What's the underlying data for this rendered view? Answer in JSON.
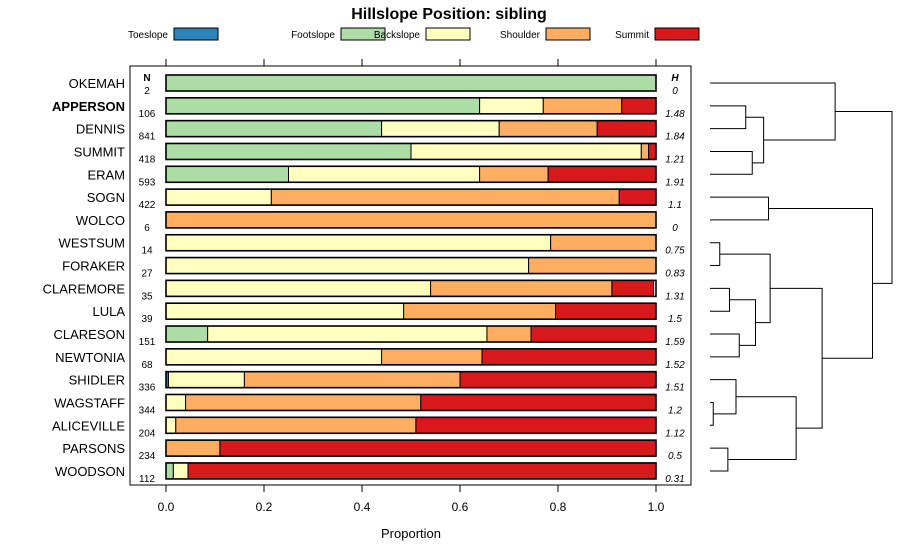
{
  "chart_data": {
    "type": "bar",
    "stacked": true,
    "orientation": "horizontal",
    "title": "Hillslope Position: sibling",
    "xlabel": "Proportion",
    "xlim": [
      0,
      1
    ],
    "x_ticks": [
      "0.0",
      "0.2",
      "0.4",
      "0.6",
      "0.8",
      "1.0"
    ],
    "n_header": "N",
    "h_header": "H",
    "highlighted_category": "APPERSON",
    "legend": [
      {
        "name": "Toeslope",
        "color": "#2b83ba"
      },
      {
        "name": "Footslope",
        "color": "#abdda4"
      },
      {
        "name": "Backslope",
        "color": "#ffffbf"
      },
      {
        "name": "Shoulder",
        "color": "#fdae61"
      },
      {
        "name": "Summit",
        "color": "#d7191c"
      }
    ],
    "categories": [
      "OKEMAH",
      "APPERSON",
      "DENNIS",
      "SUMMIT",
      "ERAM",
      "SOGN",
      "WOLCO",
      "WESTSUM",
      "FORAKER",
      "CLAREMORE",
      "LULA",
      "CLARESON",
      "NEWTONIA",
      "SHIDLER",
      "WAGSTAFF",
      "ALICEVILLE",
      "PARSONS",
      "WOODSON"
    ],
    "n": [
      "2",
      "106",
      "841",
      "418",
      "593",
      "422",
      "6",
      "14",
      "27",
      "35",
      "39",
      "151",
      "68",
      "336",
      "344",
      "204",
      "234",
      "112"
    ],
    "h": [
      "0",
      "1.48",
      "1.84",
      "1.21",
      "1.91",
      "1.1",
      "0",
      "0.75",
      "0.83",
      "1.31",
      "1.5",
      "1.59",
      "1.52",
      "1.51",
      "1.2",
      "1.12",
      "0.5",
      "0.31"
    ],
    "series": [
      {
        "name": "Toeslope",
        "values": [
          0,
          0,
          0,
          0,
          0,
          0,
          0,
          0,
          0,
          0,
          0,
          0,
          0,
          0.005,
          0,
          0,
          0,
          0
        ]
      },
      {
        "name": "Footslope",
        "values": [
          1,
          0.64,
          0.44,
          0.5,
          0.25,
          0,
          0,
          0,
          0,
          0,
          0,
          0.085,
          0,
          0,
          0,
          0,
          0,
          0.015
        ]
      },
      {
        "name": "Backslope",
        "values": [
          0,
          0.13,
          0.24,
          0.47,
          0.39,
          0.215,
          0,
          0.785,
          0.74,
          0.54,
          0.485,
          0.57,
          0.44,
          0.155,
          0.04,
          0.02,
          0,
          0.03
        ]
      },
      {
        "name": "Shoulder",
        "values": [
          0,
          0.16,
          0.2,
          0.015,
          0.14,
          0.71,
          1,
          0.215,
          0.26,
          0.37,
          0.31,
          0.09,
          0.205,
          0.44,
          0.48,
          0.49,
          0.11,
          0
        ]
      },
      {
        "name": "Summit",
        "values": [
          0,
          0.07,
          0.12,
          0.015,
          0.22,
          0.075,
          0,
          0,
          0,
          0.085,
          0.205,
          0.255,
          0.355,
          0.4,
          0.48,
          0.49,
          0.89,
          0.955
        ]
      }
    ],
    "dendrogram": {
      "leaves": [
        "OKEMAH",
        "APPERSON",
        "DENNIS",
        "SUMMIT",
        "ERAM",
        "SOGN",
        "WOLCO",
        "WESTSUM",
        "FORAKER",
        "CLAREMORE",
        "LULA",
        "CLARESON",
        "NEWTONIA",
        "SHIDLER",
        "WAGSTAFF",
        "ALICEVILLE",
        "PARSONS",
        "WOODSON"
      ],
      "merges": [
        {
          "a": "APPERSON",
          "b": "DENNIS",
          "height": 0.22
        },
        {
          "a": "SUMMIT",
          "b": "ERAM",
          "height": 0.26
        },
        {
          "a": 0,
          "b": 1,
          "height": 0.33
        },
        {
          "a": "OKEMAH",
          "b": 2,
          "height": 0.77
        },
        {
          "a": "SOGN",
          "b": "WOLCO",
          "height": 0.36
        },
        {
          "a": "WESTSUM",
          "b": "FORAKER",
          "height": 0.06
        },
        {
          "a": "CLAREMORE",
          "b": "LULA",
          "height": 0.12
        },
        {
          "a": "CLARESON",
          "b": "NEWTONIA",
          "height": 0.18
        },
        {
          "a": 6,
          "b": 7,
          "height": 0.28
        },
        {
          "a": 5,
          "b": 8,
          "height": 0.37
        },
        {
          "a": "WAGSTAFF",
          "b": "ALICEVILLE",
          "height": 0.02
        },
        {
          "a": "SHIDLER",
          "b": 10,
          "height": 0.16
        },
        {
          "a": "PARSONS",
          "b": "WOODSON",
          "height": 0.11
        },
        {
          "a": 11,
          "b": 12,
          "height": 0.53
        },
        {
          "a": 9,
          "b": 13,
          "height": 0.69
        },
        {
          "a": 4,
          "b": 14,
          "height": 1.0
        },
        {
          "a": 3,
          "b": 15,
          "height": 1.12
        }
      ]
    }
  }
}
